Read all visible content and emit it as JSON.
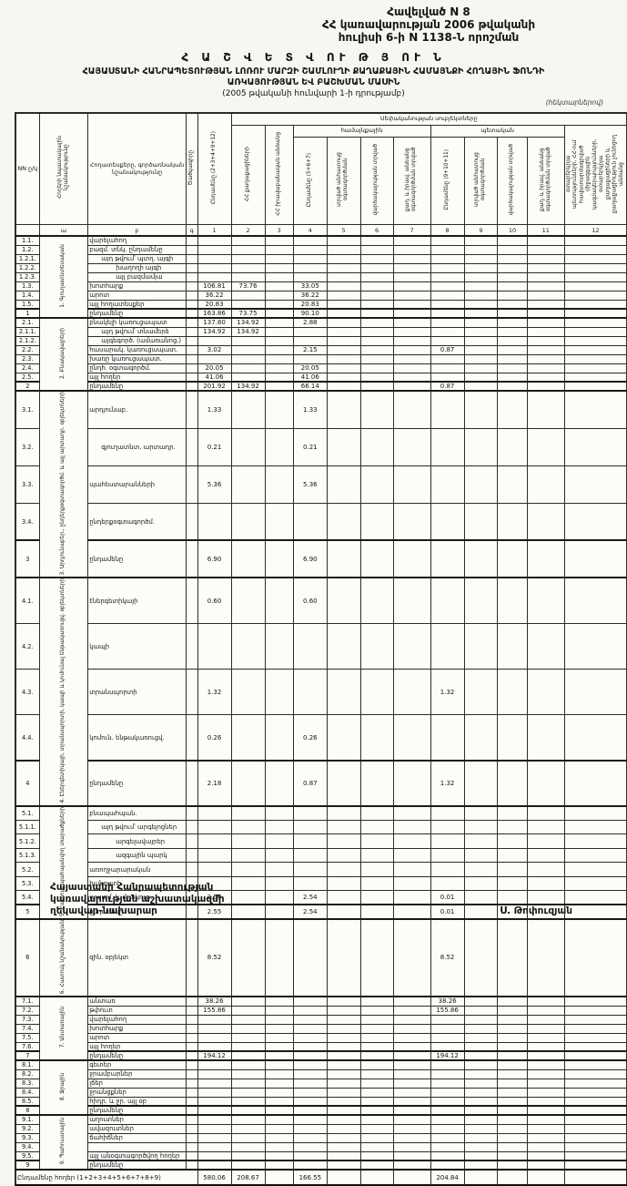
{
  "page": {
    "appendix_lines": [
      "Հավելված N 8",
      "ՀՀ կառավարության 2006 թվականի",
      "հուլիսի 6-ի N 1138-Ն որոշման"
    ],
    "title_lines": [
      "Հ Ա Շ Վ Ե Տ Վ ՈՒ Թ Յ ՈՒ Ն",
      "ՀԱՅԱՍՏԱՆԻ ՀԱՆՐԱՊԵՏՈՒԹՅԱՆ ԼՈՌՈՒ ՄԱՐԶԻ ՇԱՄԼՈՒՂԻ ՔԱՂԱՔԱՅԻՆ ՀԱՄԱՅՆՔԻ ՀՈՂԱՅԻՆ ՖՈՆԴԻ",
      "ԱՌԿԱՅՈՒԹՅԱՆ ԵՎ ԲԱՇԽՄԱՆ ՄԱՍԻՆ",
      "(2005 թվականի հունվարի 1-ի դրությամբ)"
    ],
    "units_note": "(հեկտարներով)"
  },
  "table": {
    "left_headers": {
      "nn": "NN ը/կ",
      "section": "Հողերի նպատակային նշանակությունը",
      "label": "Հողատեսքերը, գործառնական նշանակությունը",
      "code": "Ծածկագիրը"
    },
    "top_span": "Սեփականության սուբյեկտները",
    "group_community": "համայնքային",
    "group_state": "պետական",
    "columns": {
      "c1": "Ընդամենը (2+3+4+9+12)",
      "c2": "ՀՀ քաղաքացիների",
      "c3": "ՀՀ իրավաբանական անձանց",
      "c4": "Ընդամենը (5+6+7)",
      "c5": "տրված անհատույց օգտագործման",
      "c6": "վարձակալության տրված",
      "c7": "քաղ. և իրավ. անձանց օգտագործման տրված",
      "c8": "Ընդամենը (9+10+11)",
      "c9": "տրված անհատույց օգտագործման",
      "c10": "վարձակալության տրված",
      "c11": "քաղ. և իրավ. անձանց օգտագործման տրված",
      "c12": "օտարերկրյա պետությունների, ՀՀ-ում հավատարմագրված միջազգային կազմակերպությունների, օտարերկրյա քաղաքացիների և քաղաքացիություն չունեցող անձանց"
    },
    "letters": [
      "",
      "ա",
      "բ",
      "գ",
      "1",
      "2",
      "3",
      "4",
      "5",
      "6",
      "7",
      "8",
      "9",
      "10",
      "11",
      "12"
    ],
    "sections": [
      {
        "name": "1. Գյուղատնտեսական",
        "rows": [
          {
            "nn": "1.1.",
            "label": "վարելահող",
            "v": {}
          },
          {
            "nn": "1.2.",
            "label": "բազմ. տնկ. ընդամենը",
            "v": {}
          },
          {
            "nn": "1.2.1.",
            "label": "այդ թվում՝ պտղ. այգի",
            "indent": 1,
            "v": {}
          },
          {
            "nn": "1.2.2.",
            "label": "խաղողի այգի",
            "indent": 2,
            "v": {}
          },
          {
            "nn": "1.2.3.",
            "label": "այլ բազմամյա",
            "indent": 2,
            "v": {}
          },
          {
            "nn": "1.3.",
            "label": "խոտհարք",
            "v": {
              "c1": "106.81",
              "c2": "73.76",
              "c4": "33.05"
            }
          },
          {
            "nn": "1.4.",
            "label": "արոտ",
            "v": {
              "c1": "36.22",
              "c4": "36.22"
            }
          },
          {
            "nn": "1.5.",
            "label": "այլ հողատեսքեր",
            "v": {
              "c1": "20.83",
              "c4": "20.83"
            }
          },
          {
            "nn": "1",
            "label": "ընդամենը",
            "total": true,
            "v": {
              "c1": "163.86",
              "c2": "73.75",
              "c4": "90.10"
            }
          }
        ]
      },
      {
        "name": "2. Բնակավայրերի",
        "rows": [
          {
            "nn": "2.1.",
            "label": "բնակելի կառուցապատ",
            "v": {
              "c1": "137.80",
              "c2": "134.92",
              "c4": "2.88"
            }
          },
          {
            "nn": "2.1.1.",
            "label": "այդ թվում՝ տնամերձ",
            "indent": 1,
            "v": {
              "c1": "134.92",
              "c2": "134.92"
            }
          },
          {
            "nn": "2.1.2.",
            "label": "այգեգործ. (ամառանոց.)",
            "indent": 1,
            "v": {}
          },
          {
            "nn": "2.2.",
            "label": "հասարակ. կառուցապատ.",
            "v": {
              "c1": "3.02",
              "c4": "2.15",
              "c8": "0.87"
            }
          },
          {
            "nn": "2.3.",
            "label": "խառը կառուցապատ.",
            "v": {}
          },
          {
            "nn": "2.4.",
            "label": "ընդհ. օգտագործմ.",
            "v": {
              "c1": "20.05",
              "c4": "20.05"
            }
          },
          {
            "nn": "2.5.",
            "label": "այլ հողեր",
            "v": {
              "c1": "41.06",
              "c4": "41.06"
            }
          },
          {
            "nn": "2",
            "label": "ընդամենը",
            "total": true,
            "v": {
              "c1": "201.92",
              "c2": "134.92",
              "c4": "66.14",
              "c8": "0.87"
            }
          }
        ]
      },
      {
        "name": "3. Արդյունաբեր., ընդերքօգտագործմ. և այլ արտադր. օբյեկտների",
        "rows": [
          {
            "nn": "3.1.",
            "label": "արդյունաբ.",
            "v": {
              "c1": "1.33",
              "c4": "1.33"
            }
          },
          {
            "nn": "3.2.",
            "label": "գյուղատնտ. արտադր.",
            "indent": 1,
            "v": {
              "c1": "0.21",
              "c4": "0.21"
            }
          },
          {
            "nn": "3.3.",
            "label": "պահեստարանների",
            "v": {
              "c1": "5.36",
              "c4": "5.36"
            }
          },
          {
            "nn": "3.4.",
            "label": "ընդերքօգտագործմ.",
            "v": {}
          },
          {
            "nn": "3",
            "label": "ընդամենը",
            "total": true,
            "v": {
              "c1": "6.90",
              "c4": "6.90"
            }
          }
        ]
      },
      {
        "name": "4. Էներգետիկայի, տրանսպորտի, կապի և կոմունալ ենթակառուցվ. օբյեկտների",
        "rows": [
          {
            "nn": "4.1.",
            "label": "էներգետիկայի",
            "v": {
              "c1": "0.60",
              "c4": "0.60"
            }
          },
          {
            "nn": "4.2.",
            "label": "կապի",
            "v": {}
          },
          {
            "nn": "4.3.",
            "label": "տրանսպորտի",
            "v": {
              "c1": "1.32",
              "c8": "1.32"
            }
          },
          {
            "nn": "4.4.",
            "label": "կոմուն. ենթակառուցվ.",
            "v": {
              "c1": "0.26",
              "c4": "0.26"
            }
          },
          {
            "nn": "4",
            "label": "ընդամենը",
            "total": true,
            "v": {
              "c1": "2.18",
              "c4": "0.87",
              "c8": "1.32"
            }
          }
        ]
      },
      {
        "name": "5. Հատուկ պահպանվող տարածքների",
        "rows": [
          {
            "nn": "5.1.",
            "label": "բնապահպան.",
            "v": {}
          },
          {
            "nn": "5.1.1.",
            "label": "այդ թվում՝ արգելոցներ",
            "indent": 1,
            "v": {}
          },
          {
            "nn": "5.1.2.",
            "label": "արգելավայրեր",
            "indent": 2,
            "v": {}
          },
          {
            "nn": "5.1.3.",
            "label": "ազգային պարկ",
            "indent": 2,
            "v": {}
          },
          {
            "nn": "5.2.",
            "label": "առողջարարական",
            "v": {}
          },
          {
            "nn": "5.3.",
            "label": "հանգստի",
            "v": {}
          },
          {
            "nn": "5.4.",
            "label": "պատմ. և մշակութ.",
            "v": {
              "c1": "2.56",
              "c4": "2.54",
              "c8": "0.01"
            }
          },
          {
            "nn": "5",
            "label": "ընդամենը",
            "total": true,
            "v": {
              "c1": "2.55",
              "c4": "2.54",
              "c8": "0.01"
            }
          }
        ]
      },
      {
        "name": "6. Հատուկ նշանակության",
        "rows": [
          {
            "nn": "6",
            "label": "զին. օբյեկտ",
            "tall": true,
            "v": {
              "c1": "8.52",
              "c8": "8.52"
            }
          }
        ]
      },
      {
        "name": "7. Անտառային",
        "rows": [
          {
            "nn": "7.1.",
            "label": "անտառ",
            "v": {
              "c1": "38.26",
              "c8": "38.26"
            }
          },
          {
            "nn": "7.2.",
            "label": "թփուտ",
            "v": {
              "c1": "155.86",
              "c8": "155.86"
            }
          },
          {
            "nn": "7.3.",
            "label": "վարելահող",
            "v": {}
          },
          {
            "nn": "7.4.",
            "label": "խոտհարք",
            "v": {}
          },
          {
            "nn": "7.5.",
            "label": "արոտ",
            "v": {}
          },
          {
            "nn": "7.6.",
            "label": "այլ հողեր",
            "v": {}
          },
          {
            "nn": "7",
            "label": "ընդամենը",
            "total": true,
            "v": {
              "c1": "194.12",
              "c8": "194.12"
            }
          }
        ]
      },
      {
        "name": "8. Ջրային",
        "rows": [
          {
            "nn": "8.1.",
            "label": "գետեր",
            "v": {}
          },
          {
            "nn": "8.2.",
            "label": "ջրամբարներ",
            "v": {}
          },
          {
            "nn": "8.3.",
            "label": "լճեր",
            "v": {}
          },
          {
            "nn": "8.4.",
            "label": "ջրանցքներ",
            "v": {}
          },
          {
            "nn": "8.5.",
            "label": "հիդր. և ջր. այլ օբ",
            "v": {}
          },
          {
            "nn": "8",
            "label": "ընդամենը",
            "total": true,
            "v": {}
          }
        ]
      },
      {
        "name": "9. Պահուստային",
        "rows": [
          {
            "nn": "9.1.",
            "label": "աղուտներ",
            "v": {}
          },
          {
            "nn": "9.2.",
            "label": "ավազուտներ",
            "v": {}
          },
          {
            "nn": "9.3.",
            "label": "ճահիճներ",
            "v": {}
          },
          {
            "nn": "9.4.",
            "label": "",
            "v": {}
          },
          {
            "nn": "9.5.",
            "label": "այլ անօգտագործվող հողեր",
            "v": {}
          },
          {
            "nn": "9",
            "label": "ընդամենը",
            "total": true,
            "v": {}
          }
        ]
      }
    ],
    "grand_total": {
      "label": "Ընդամենը հողեր (1+2+3+4+5+6+7+8+9)",
      "v": {
        "c1": "580.06",
        "c2": "208.67",
        "c4": "166.55",
        "c8": "204.84"
      }
    }
  },
  "footer": {
    "lines": [
      "Հայաստանի Հանրապետության",
      "կառավարության աշխատակազմի",
      "ղեկավար-նախարար"
    ],
    "signature": "Ս. Թոփուզյան"
  }
}
